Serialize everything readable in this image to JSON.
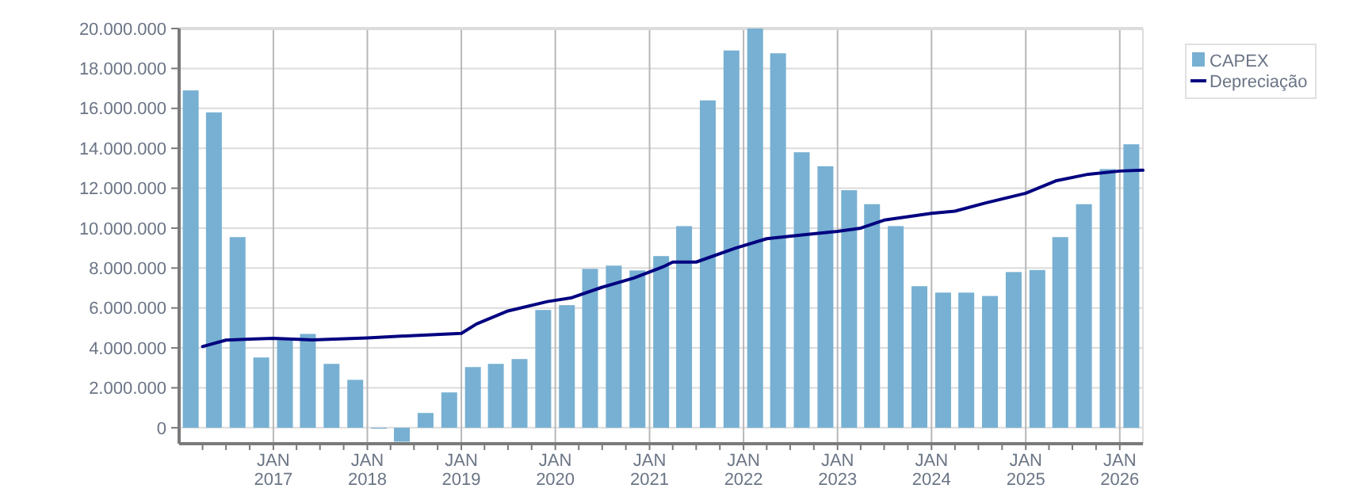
{
  "chart_data": {
    "type": "bar",
    "x": [
      "2016-02-15",
      "2016-05-15",
      "2016-08-15",
      "2016-11-15",
      "2017-02-15",
      "2017-05-15",
      "2017-08-15",
      "2017-11-15",
      "2018-02-15",
      "2018-05-15",
      "2018-08-15",
      "2018-11-15",
      "2019-02-15",
      "2019-05-15",
      "2019-08-15",
      "2019-11-15",
      "2020-02-15",
      "2020-05-15",
      "2020-08-15",
      "2020-11-15",
      "2021-02-15",
      "2021-05-15",
      "2021-08-15",
      "2021-11-15",
      "2022-02-15",
      "2022-05-15",
      "2022-08-15",
      "2022-11-15",
      "2023-02-15",
      "2023-05-15",
      "2023-08-15",
      "2023-11-15",
      "2024-02-15",
      "2024-05-15",
      "2024-08-15",
      "2024-11-15",
      "2025-02-15",
      "2025-05-15",
      "2025-08-15",
      "2025-11-15",
      "2026-02-15"
    ],
    "series": [
      {
        "name": "CAPEX",
        "color": "#77b0d2",
        "values": [
          16900000,
          15800000,
          9550000,
          3520000,
          4500000,
          4700000,
          3200000,
          2400000,
          -50000,
          -700000,
          740000,
          1770000,
          3040000,
          3200000,
          3440000,
          5900000,
          6140000,
          7960000,
          8120000,
          7880000,
          8600000,
          10100000,
          16400000,
          18900000,
          20000000,
          18760000,
          13800000,
          13100000,
          11900000,
          11200000,
          10100000,
          7090000,
          6770000,
          6770000,
          6600000,
          7800000,
          7900000,
          9550000,
          11200000,
          12960000,
          14200000
        ]
      },
      {
        "name": "Depreciação",
        "type": "line",
        "color": "#000080",
        "x": [
          "2016-04",
          "2016-07",
          "2016-10",
          "2017-01",
          "2017-06",
          "2018-01",
          "2018-06",
          "2019-01",
          "2019-03",
          "2019-07",
          "2019-12",
          "2020-03",
          "2020-07",
          "2020-11",
          "2021-03",
          "2021-04",
          "2021-07",
          "2021-12",
          "2022-04",
          "2022-09",
          "2023-01",
          "2023-04",
          "2023-07",
          "2024-01",
          "2024-04",
          "2024-08",
          "2025-01",
          "2025-05",
          "2025-09",
          "2026-01",
          "2026-04"
        ],
        "values": [
          4070000,
          4390000,
          4440000,
          4480000,
          4400000,
          4500000,
          4600000,
          4730000,
          5200000,
          5850000,
          6320000,
          6500000,
          7040000,
          7500000,
          8100000,
          8300000,
          8300000,
          9000000,
          9470000,
          9680000,
          9840000,
          10000000,
          10400000,
          10740000,
          10850000,
          11270000,
          11750000,
          12380000,
          12700000,
          12860000,
          12900000
        ]
      }
    ],
    "xlim": [
      "2016-01",
      "2026-04"
    ],
    "xticks": [
      {
        "value": "2016-04",
        "label": null
      },
      {
        "value": "2016-07",
        "label": null
      },
      {
        "value": "2016-10",
        "label": null
      },
      {
        "value": "2017-01",
        "label": "JAN\n2017"
      },
      {
        "value": "2017-04",
        "label": null
      },
      {
        "value": "2017-07",
        "label": null
      },
      {
        "value": "2017-10",
        "label": null
      },
      {
        "value": "2018-01",
        "label": "JAN\n2018"
      },
      {
        "value": "2018-04",
        "label": null
      },
      {
        "value": "2018-07",
        "label": null
      },
      {
        "value": "2018-10",
        "label": null
      },
      {
        "value": "2019-01",
        "label": "JAN\n2019"
      },
      {
        "value": "2019-04",
        "label": null
      },
      {
        "value": "2019-07",
        "label": null
      },
      {
        "value": "2019-10",
        "label": null
      },
      {
        "value": "2020-01",
        "label": "JAN\n2020"
      },
      {
        "value": "2020-04",
        "label": null
      },
      {
        "value": "2020-07",
        "label": null
      },
      {
        "value": "2020-10",
        "label": null
      },
      {
        "value": "2021-01",
        "label": "JAN\n2021"
      },
      {
        "value": "2021-04",
        "label": null
      },
      {
        "value": "2021-07",
        "label": null
      },
      {
        "value": "2021-10",
        "label": null
      },
      {
        "value": "2022-01",
        "label": "JAN\n2022"
      },
      {
        "value": "2022-04",
        "label": null
      },
      {
        "value": "2022-07",
        "label": null
      },
      {
        "value": "2022-10",
        "label": null
      },
      {
        "value": "2023-01",
        "label": "JAN\n2023"
      },
      {
        "value": "2023-04",
        "label": null
      },
      {
        "value": "2023-07",
        "label": null
      },
      {
        "value": "2023-10",
        "label": null
      },
      {
        "value": "2024-01",
        "label": "JAN\n2024"
      },
      {
        "value": "2024-04",
        "label": null
      },
      {
        "value": "2024-07",
        "label": null
      },
      {
        "value": "2024-10",
        "label": null
      },
      {
        "value": "2025-01",
        "label": "JAN\n2025"
      },
      {
        "value": "2025-04",
        "label": null
      },
      {
        "value": "2025-07",
        "label": null
      },
      {
        "value": "2025-10",
        "label": null
      },
      {
        "value": "2026-01",
        "label": "JAN\n2026"
      }
    ],
    "ylim": [
      -800000,
      20000000
    ],
    "yticks": [
      {
        "value": 0,
        "label": "0"
      },
      {
        "value": 2000000,
        "label": "2.000.000"
      },
      {
        "value": 4000000,
        "label": "4.000.000"
      },
      {
        "value": 6000000,
        "label": "6.000.000"
      },
      {
        "value": 8000000,
        "label": "8.000.000"
      },
      {
        "value": 10000000,
        "label": "10.000.000"
      },
      {
        "value": 12000000,
        "label": "12.000.000"
      },
      {
        "value": 14000000,
        "label": "14.000.000"
      },
      {
        "value": 16000000,
        "label": "16.000.000"
      },
      {
        "value": 18000000,
        "label": "18.000.000"
      },
      {
        "value": 20000000,
        "label": "20.000.000"
      }
    ],
    "grid": true,
    "legend": "top right"
  }
}
